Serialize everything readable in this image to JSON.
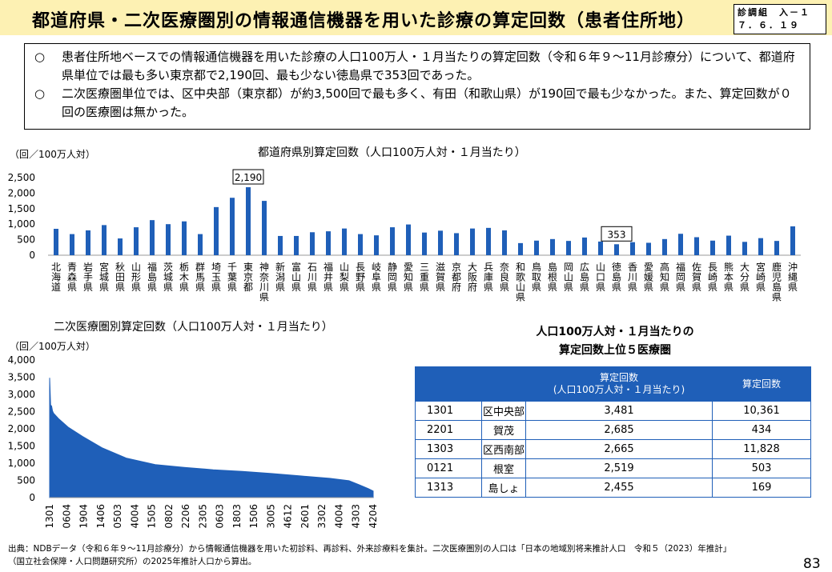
{
  "header": {
    "title": "都道府県・二次医療圏別の情報通信機器を用いた診療の算定回数（患者住所地）",
    "ref_line1": "診調組　入－１",
    "ref_line2": "７．６．１９"
  },
  "summary": [
    {
      "mark": "○",
      "text": "患者住所地ベースでの情報通信機器を用いた診療の人口100万人・１月当たりの算定回数（令和６年９～11月診療分）について、都道府県単位では最も多い東京都で2,190回、最も少ない徳島県で353回であった。"
    },
    {
      "mark": "○",
      "text": "二次医療圏単位では、区中央部（東京都）が約3,500回で最も多く、有田（和歌山県）が190回で最も少なかった。また、算定回数が０回の医療圏は無かった。"
    }
  ],
  "chart_data": [
    {
      "type": "bar",
      "title": "都道府県別算定回数（人口100万人対・１月当たり）",
      "ylabel": "（回／100万人対）",
      "ylim": [
        0,
        2500
      ],
      "yticks": [
        "0",
        "500",
        "1,000",
        "1,500",
        "2,000",
        "2,500"
      ],
      "grid": false,
      "color": "#1f5fb8",
      "categories": [
        "北海道",
        "青森県",
        "岩手県",
        "宮城県",
        "秋田県",
        "山形県",
        "福島県",
        "茨城県",
        "栃木県",
        "群馬県",
        "埼玉県",
        "千葉県",
        "東京都",
        "神奈川県",
        "新潟県",
        "富山県",
        "石川県",
        "福井県",
        "山梨県",
        "長野県",
        "岐阜県",
        "静岡県",
        "愛知県",
        "三重県",
        "滋賀県",
        "京都府",
        "大阪府",
        "兵庫県",
        "奈良県",
        "和歌山県",
        "鳥取県",
        "島根県",
        "岡山県",
        "広島県",
        "山口県",
        "徳島県",
        "香川県",
        "愛媛県",
        "高知県",
        "福岡県",
        "佐賀県",
        "長崎県",
        "熊本県",
        "大分県",
        "宮崎県",
        "鹿児島県",
        "沖縄県"
      ],
      "values": [
        850,
        680,
        800,
        970,
        540,
        900,
        1130,
        1000,
        1090,
        680,
        1550,
        1850,
        2190,
        1750,
        620,
        620,
        740,
        770,
        860,
        680,
        640,
        900,
        990,
        730,
        790,
        710,
        860,
        880,
        800,
        390,
        470,
        520,
        460,
        570,
        440,
        353,
        420,
        400,
        520,
        690,
        580,
        470,
        630,
        430,
        550,
        460,
        930
      ],
      "annotations": [
        {
          "label": "2,190"
        },
        {
          "label": "353"
        }
      ]
    },
    {
      "type": "area",
      "title": "二次医療圏別算定回数（人口100万人対・１月当たり）",
      "ylabel": "（回／100万人対）",
      "ylim": [
        0,
        4000
      ],
      "yticks": [
        "0",
        "500",
        "1,000",
        "1,500",
        "2,000",
        "2,500",
        "3,000",
        "3,500",
        "4,000"
      ],
      "grid": false,
      "color": "#1f5fb8",
      "x_ticklabels": [
        "1301",
        "0604",
        "1904",
        "1406",
        "0503",
        "4004",
        "1505",
        "0802",
        "2206",
        "2305",
        "0603",
        "1803",
        "1506",
        "3005",
        "4612",
        "2601",
        "3302",
        "4004",
        "4303",
        "4204"
      ],
      "curve": [
        {
          "rank": 1,
          "value": 3481
        },
        {
          "rank": 2,
          "value": 2685
        },
        {
          "rank": 3,
          "value": 2665
        },
        {
          "rank": 4,
          "value": 2519
        },
        {
          "rank": 5,
          "value": 2455
        },
        {
          "rank": 10,
          "value": 2300
        },
        {
          "rank": 20,
          "value": 2050
        },
        {
          "rank": 35,
          "value": 1780
        },
        {
          "rank": 55,
          "value": 1450
        },
        {
          "rank": 80,
          "value": 1150
        },
        {
          "rank": 110,
          "value": 960
        },
        {
          "rank": 140,
          "value": 880
        },
        {
          "rank": 170,
          "value": 810
        },
        {
          "rank": 200,
          "value": 760
        },
        {
          "rank": 230,
          "value": 700
        },
        {
          "rank": 260,
          "value": 630
        },
        {
          "rank": 290,
          "value": 560
        },
        {
          "rank": 310,
          "value": 490
        },
        {
          "rank": 320,
          "value": 380
        },
        {
          "rank": 330,
          "value": 260
        },
        {
          "rank": 335,
          "value": 190
        }
      ]
    }
  ],
  "table": {
    "title_line1": "人口100万人対・１月当たりの",
    "title_line2": "算定回数上位５医療圏",
    "col1_header": "算定回数\n(人口100万人対・１月当たり)",
    "col2_header": "算定回数",
    "rows": [
      {
        "code": "1301",
        "name": "区中央部",
        "per_million": "3,481",
        "count": "10,361"
      },
      {
        "code": "2201",
        "name": "賀茂",
        "per_million": "2,685",
        "count": "434"
      },
      {
        "code": "1303",
        "name": "区西南部",
        "per_million": "2,665",
        "count": "11,828"
      },
      {
        "code": "0121",
        "name": "根室",
        "per_million": "2,519",
        "count": "503"
      },
      {
        "code": "1313",
        "name": "島しょ",
        "per_million": "2,455",
        "count": "169"
      }
    ]
  },
  "footer": {
    "line1": "出典：NDBデータ（令和６年９～11月診療分）から情報通信機器を用いた初診料、再診料、外来診療料を集計。二次医療圏別の人口は「日本の地域別将来推計人口　令和５（2023）年推計」",
    "line2": "（国立社会保障・人口問題研究所）の2025年推計人口から算出。",
    "page": "83"
  }
}
